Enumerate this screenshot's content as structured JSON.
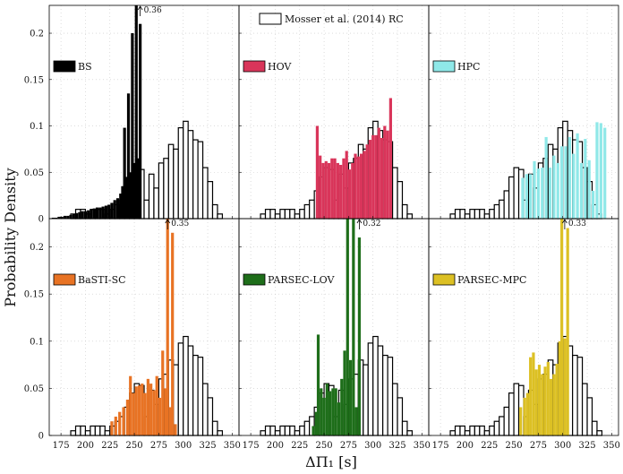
{
  "figure": {
    "ylabel": "Probability Density",
    "xlabel": "ΔΠ₁ [s]",
    "reference_legend": "Mosser et al. (2014) RC"
  },
  "chart_data": {
    "type": "bar",
    "title": "",
    "xlabel": "ΔΠ₁ [s]",
    "ylabel": "Probability Density",
    "xlim": [
      163,
      357
    ],
    "ylim": [
      0,
      0.23
    ],
    "x_ticks": [
      "175",
      "200",
      "225",
      "250",
      "275",
      "300",
      "325",
      "350"
    ],
    "y_ticks": [
      "0",
      "0.05",
      "0.1",
      "0.15",
      "0.2"
    ],
    "grid": true,
    "reference": {
      "name": "Mosser et al. (2014) RC",
      "bin_width": 5,
      "bins": [
        {
          "x": 187.5,
          "v": 0.005
        },
        {
          "x": 192.5,
          "v": 0.01
        },
        {
          "x": 197.5,
          "v": 0.01
        },
        {
          "x": 202.5,
          "v": 0.005
        },
        {
          "x": 207.5,
          "v": 0.01
        },
        {
          "x": 212.5,
          "v": 0.01
        },
        {
          "x": 217.5,
          "v": 0.01
        },
        {
          "x": 222.5,
          "v": 0.005
        },
        {
          "x": 227.5,
          "v": 0.01
        },
        {
          "x": 232.5,
          "v": 0.015
        },
        {
          "x": 237.5,
          "v": 0.02
        },
        {
          "x": 242.5,
          "v": 0.03
        },
        {
          "x": 247.5,
          "v": 0.045
        },
        {
          "x": 252.5,
          "v": 0.055
        },
        {
          "x": 257.5,
          "v": 0.053
        },
        {
          "x": 262.5,
          "v": 0.02
        },
        {
          "x": 267.5,
          "v": 0.048
        },
        {
          "x": 272.5,
          "v": 0.033
        },
        {
          "x": 277.5,
          "v": 0.06
        },
        {
          "x": 282.5,
          "v": 0.065
        },
        {
          "x": 287.5,
          "v": 0.08
        },
        {
          "x": 292.5,
          "v": 0.075
        },
        {
          "x": 297.5,
          "v": 0.098
        },
        {
          "x": 302.5,
          "v": 0.105
        },
        {
          "x": 307.5,
          "v": 0.095
        },
        {
          "x": 312.5,
          "v": 0.085
        },
        {
          "x": 317.5,
          "v": 0.083
        },
        {
          "x": 322.5,
          "v": 0.055
        },
        {
          "x": 327.5,
          "v": 0.04
        },
        {
          "x": 332.5,
          "v": 0.015
        },
        {
          "x": 337.5,
          "v": 0.005
        }
      ]
    },
    "panels": [
      {
        "name": "BS",
        "color": "#000000",
        "bars": [
          {
            "x": 167,
            "v": 0.001
          },
          {
            "x": 170,
            "v": 0.001
          },
          {
            "x": 173,
            "v": 0.002
          },
          {
            "x": 176,
            "v": 0.002
          },
          {
            "x": 179,
            "v": 0.003
          },
          {
            "x": 182,
            "v": 0.003
          },
          {
            "x": 185,
            "v": 0.004
          },
          {
            "x": 188,
            "v": 0.005
          },
          {
            "x": 191,
            "v": 0.006
          },
          {
            "x": 194,
            "v": 0.007
          },
          {
            "x": 197,
            "v": 0.008
          },
          {
            "x": 200,
            "v": 0.008
          },
          {
            "x": 203,
            "v": 0.009
          },
          {
            "x": 206,
            "v": 0.01
          },
          {
            "x": 209,
            "v": 0.011
          },
          {
            "x": 212,
            "v": 0.012
          },
          {
            "x": 215,
            "v": 0.012
          },
          {
            "x": 218,
            "v": 0.013
          },
          {
            "x": 221,
            "v": 0.014
          },
          {
            "x": 224,
            "v": 0.015
          },
          {
            "x": 227,
            "v": 0.017
          },
          {
            "x": 230,
            "v": 0.02
          },
          {
            "x": 233,
            "v": 0.022
          },
          {
            "x": 236,
            "v": 0.027
          },
          {
            "x": 238,
            "v": 0.035
          },
          {
            "x": 240,
            "v": 0.098
          },
          {
            "x": 242,
            "v": 0.045
          },
          {
            "x": 244,
            "v": 0.135
          },
          {
            "x": 246,
            "v": 0.05
          },
          {
            "x": 248,
            "v": 0.2
          },
          {
            "x": 250,
            "v": 0.06
          },
          {
            "x": 252,
            "v": 0.23
          },
          {
            "x": 254,
            "v": 0.065
          },
          {
            "x": 256,
            "v": 0.21
          }
        ],
        "arrow": {
          "x": 256,
          "label": "0.36"
        }
      },
      {
        "name": "HOV",
        "color": "#d9355a",
        "bars": [
          {
            "x": 243,
            "v": 0.1
          },
          {
            "x": 246,
            "v": 0.068
          },
          {
            "x": 249,
            "v": 0.06
          },
          {
            "x": 252,
            "v": 0.062
          },
          {
            "x": 255,
            "v": 0.06
          },
          {
            "x": 258,
            "v": 0.065
          },
          {
            "x": 261,
            "v": 0.065
          },
          {
            "x": 264,
            "v": 0.06
          },
          {
            "x": 267,
            "v": 0.058
          },
          {
            "x": 270,
            "v": 0.065
          },
          {
            "x": 273,
            "v": 0.073
          },
          {
            "x": 276,
            "v": 0.053
          },
          {
            "x": 279,
            "v": 0.06
          },
          {
            "x": 282,
            "v": 0.07
          },
          {
            "x": 285,
            "v": 0.067
          },
          {
            "x": 288,
            "v": 0.07
          },
          {
            "x": 291,
            "v": 0.073
          },
          {
            "x": 294,
            "v": 0.08
          },
          {
            "x": 297,
            "v": 0.085
          },
          {
            "x": 300,
            "v": 0.09
          },
          {
            "x": 303,
            "v": 0.09
          },
          {
            "x": 306,
            "v": 0.098
          },
          {
            "x": 309,
            "v": 0.087
          },
          {
            "x": 312,
            "v": 0.1
          },
          {
            "x": 315,
            "v": 0.095
          },
          {
            "x": 318,
            "v": 0.13
          }
        ]
      },
      {
        "name": "HPC",
        "color": "#8fe8e8",
        "bars": [
          {
            "x": 259,
            "v": 0.044
          },
          {
            "x": 263,
            "v": 0.048
          },
          {
            "x": 267,
            "v": 0.048
          },
          {
            "x": 271,
            "v": 0.062
          },
          {
            "x": 275,
            "v": 0.054
          },
          {
            "x": 279,
            "v": 0.055
          },
          {
            "x": 283,
            "v": 0.088
          },
          {
            "x": 287,
            "v": 0.055
          },
          {
            "x": 291,
            "v": 0.068
          },
          {
            "x": 295,
            "v": 0.06
          },
          {
            "x": 299,
            "v": 0.078
          },
          {
            "x": 303,
            "v": 0.078
          },
          {
            "x": 307,
            "v": 0.088
          },
          {
            "x": 311,
            "v": 0.07
          },
          {
            "x": 315,
            "v": 0.092
          },
          {
            "x": 319,
            "v": 0.06
          },
          {
            "x": 323,
            "v": 0.086
          },
          {
            "x": 327,
            "v": 0.063
          },
          {
            "x": 331,
            "v": 0.03
          },
          {
            "x": 335,
            "v": 0.104
          },
          {
            "x": 339,
            "v": 0.103
          },
          {
            "x": 343,
            "v": 0.098
          }
        ]
      },
      {
        "name": "BaSTI-SC",
        "color": "#e87324",
        "bars": [
          {
            "x": 227,
            "v": 0.015
          },
          {
            "x": 231,
            "v": 0.02
          },
          {
            "x": 235,
            "v": 0.025
          },
          {
            "x": 239,
            "v": 0.03
          },
          {
            "x": 243,
            "v": 0.038
          },
          {
            "x": 246,
            "v": 0.063
          },
          {
            "x": 249,
            "v": 0.045
          },
          {
            "x": 252,
            "v": 0.052
          },
          {
            "x": 255,
            "v": 0.053
          },
          {
            "x": 258,
            "v": 0.055
          },
          {
            "x": 261,
            "v": 0.045
          },
          {
            "x": 264,
            "v": 0.06
          },
          {
            "x": 267,
            "v": 0.055
          },
          {
            "x": 270,
            "v": 0.048
          },
          {
            "x": 273,
            "v": 0.063
          },
          {
            "x": 276,
            "v": 0.04
          },
          {
            "x": 279,
            "v": 0.09
          },
          {
            "x": 282,
            "v": 0.05
          },
          {
            "x": 284,
            "v": 0.23
          },
          {
            "x": 287,
            "v": 0.03
          },
          {
            "x": 289,
            "v": 0.215
          },
          {
            "x": 292,
            "v": 0.012
          }
        ],
        "arrow": {
          "x": 284,
          "label": "0.35"
        }
      },
      {
        "name": "PARSEC-LOV",
        "color": "#1e6e1a",
        "bars": [
          {
            "x": 239,
            "v": 0.01
          },
          {
            "x": 242,
            "v": 0.025
          },
          {
            "x": 244,
            "v": 0.107
          },
          {
            "x": 247,
            "v": 0.05
          },
          {
            "x": 250,
            "v": 0.04
          },
          {
            "x": 253,
            "v": 0.055
          },
          {
            "x": 256,
            "v": 0.047
          },
          {
            "x": 259,
            "v": 0.05
          },
          {
            "x": 262,
            "v": 0.05
          },
          {
            "x": 265,
            "v": 0.035
          },
          {
            "x": 268,
            "v": 0.06
          },
          {
            "x": 271,
            "v": 0.09
          },
          {
            "x": 274,
            "v": 0.23
          },
          {
            "x": 277,
            "v": 0.08
          },
          {
            "x": 280,
            "v": 0.23
          },
          {
            "x": 283,
            "v": 0.03
          },
          {
            "x": 286,
            "v": 0.21
          }
        ],
        "arrow": {
          "x": 286,
          "label": "0.32"
        }
      },
      {
        "name": "PARSEC-MPC",
        "color": "#dcc024",
        "bars": [
          {
            "x": 257,
            "v": 0.03
          },
          {
            "x": 261,
            "v": 0.04
          },
          {
            "x": 264,
            "v": 0.045
          },
          {
            "x": 267,
            "v": 0.083
          },
          {
            "x": 270,
            "v": 0.088
          },
          {
            "x": 273,
            "v": 0.07
          },
          {
            "x": 276,
            "v": 0.075
          },
          {
            "x": 279,
            "v": 0.065
          },
          {
            "x": 282,
            "v": 0.073
          },
          {
            "x": 285,
            "v": 0.078
          },
          {
            "x": 288,
            "v": 0.06
          },
          {
            "x": 291,
            "v": 0.065
          },
          {
            "x": 294,
            "v": 0.076
          },
          {
            "x": 297,
            "v": 0.1
          },
          {
            "x": 299,
            "v": 0.23
          },
          {
            "x": 302,
            "v": 0.103
          },
          {
            "x": 305,
            "v": 0.22
          }
        ],
        "arrow": {
          "x": 302,
          "label": "0.33"
        }
      }
    ]
  }
}
